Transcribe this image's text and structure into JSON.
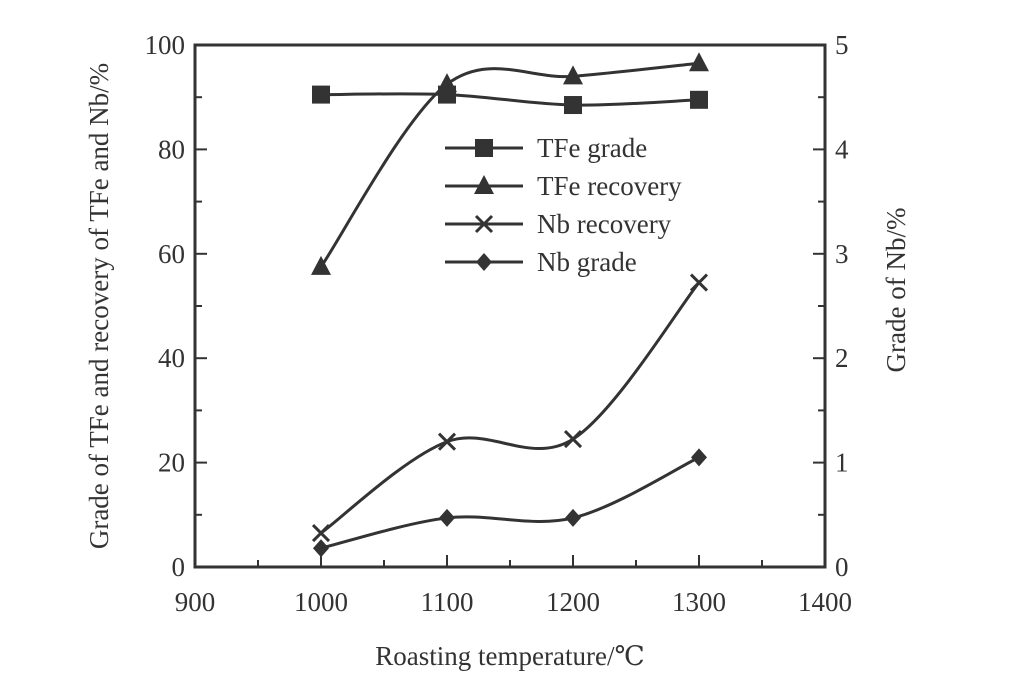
{
  "chart_data": {
    "type": "line",
    "xlabel": "Roasting temperature/℃",
    "ylabel_left": "Grade of TFe and recovery of TFe and Nb/%",
    "ylabel_right": "Grade of Nb/%",
    "xlim": [
      900,
      1400
    ],
    "ylim_left": [
      0,
      100
    ],
    "ylim_right": [
      0,
      5
    ],
    "x_ticks": [
      "900",
      "1000",
      "1100",
      "1200",
      "1300",
      "1400"
    ],
    "y_left_ticks": [
      "0",
      "20",
      "40",
      "60",
      "80",
      "100"
    ],
    "y_right_ticks": [
      "0",
      "1",
      "2",
      "3",
      "4",
      "5"
    ],
    "x": [
      1000,
      1100,
      1200,
      1300
    ],
    "series": [
      {
        "name": "TFe grade",
        "axis": "left",
        "marker": "square",
        "values": [
          90.5,
          90.5,
          88.5,
          89.5
        ]
      },
      {
        "name": "TFe recovery",
        "axis": "left",
        "marker": "triangle",
        "values": [
          57.5,
          92.5,
          94,
          96.5
        ]
      },
      {
        "name": "Nb recovery",
        "axis": "left",
        "marker": "x",
        "values": [
          6.5,
          24,
          24.5,
          54.5
        ]
      },
      {
        "name": "Nb grade",
        "axis": "right",
        "marker": "diamond",
        "values": [
          0.18,
          0.47,
          0.47,
          1.05
        ]
      }
    ],
    "legend_position": "upper-center",
    "grid": false,
    "line_color": "#333333"
  }
}
